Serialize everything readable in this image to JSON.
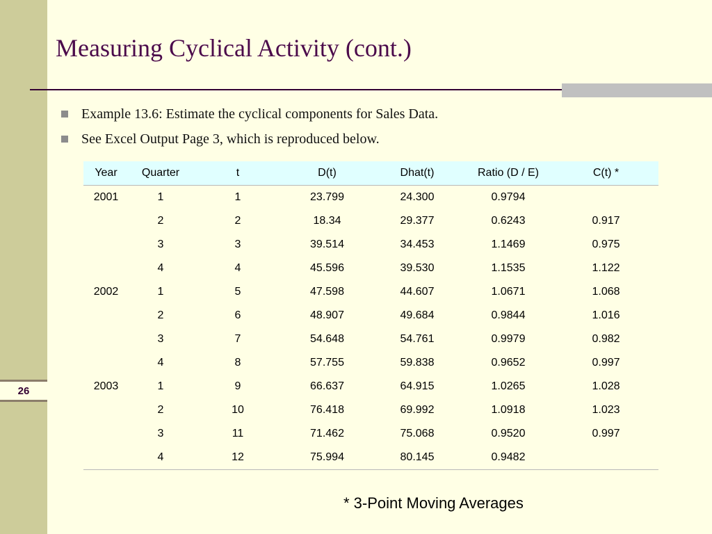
{
  "slide": {
    "title": "Measuring Cyclical Activity (cont.)",
    "number": "26",
    "bullets": [
      "Example 13.6: Estimate the cyclical components for Sales Data.",
      "See Excel Output Page 3, which is reproduced below."
    ],
    "footnote": "* 3-Point Moving Averages"
  },
  "table": {
    "headers": [
      "Year",
      "Quarter",
      "t",
      "D(t)",
      "Dhat(t)",
      "Ratio (D / E)",
      "C(t) *"
    ],
    "rows": [
      [
        "2001",
        "1",
        "1",
        "23.799",
        "24.300",
        "0.9794",
        ""
      ],
      [
        "",
        "2",
        "2",
        "18.34",
        "29.377",
        "0.6243",
        "0.917"
      ],
      [
        "",
        "3",
        "3",
        "39.514",
        "34.453",
        "1.1469",
        "0.975"
      ],
      [
        "",
        "4",
        "4",
        "45.596",
        "39.530",
        "1.1535",
        "1.122"
      ],
      [
        "2002",
        "1",
        "5",
        "47.598",
        "44.607",
        "1.0671",
        "1.068"
      ],
      [
        "",
        "2",
        "6",
        "48.907",
        "49.684",
        "0.9844",
        "1.016"
      ],
      [
        "",
        "3",
        "7",
        "54.648",
        "54.761",
        "0.9979",
        "0.982"
      ],
      [
        "",
        "4",
        "8",
        "57.755",
        "59.838",
        "0.9652",
        "0.997"
      ],
      [
        "2003",
        "1",
        "9",
        "66.637",
        "64.915",
        "1.0265",
        "1.028"
      ],
      [
        "",
        "2",
        "10",
        "76.418",
        "69.992",
        "1.0918",
        "1.023"
      ],
      [
        "",
        "3",
        "11",
        "71.462",
        "75.068",
        "0.9520",
        "0.997"
      ],
      [
        "",
        "4",
        "12",
        "75.994",
        "80.145",
        "0.9482",
        ""
      ]
    ]
  },
  "colors": {
    "background": "#FFFFE5",
    "sidebar": "#CDCC9A",
    "title": "#4B0A4B",
    "header_row": "#E0FFFF"
  }
}
